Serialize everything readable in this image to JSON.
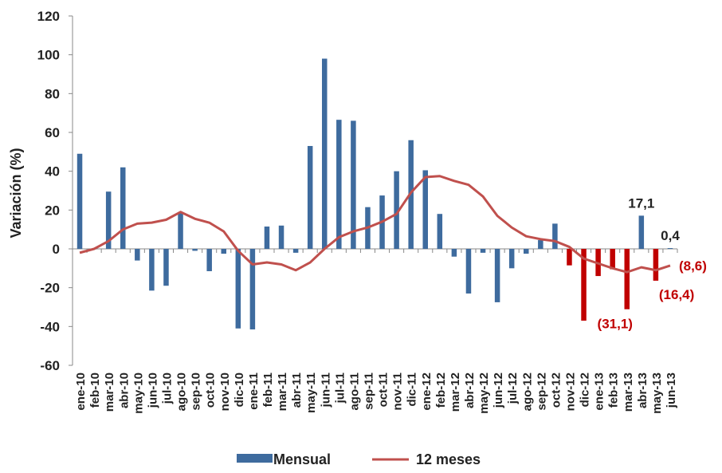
{
  "chart_data": {
    "type": "bar",
    "ylabel": "Variación (%)",
    "ylim": [
      -60,
      120
    ],
    "yticks": [
      "120",
      "100",
      "80",
      "60",
      "40",
      "20",
      "0",
      "-20",
      "-40",
      "-60"
    ],
    "categories": [
      "ene-10",
      "feb-10",
      "mar-10",
      "abr-10",
      "may-10",
      "jun-10",
      "jul-10",
      "ago-10",
      "sep-10",
      "oct-10",
      "nov-10",
      "dic-10",
      "ene-11",
      "feb-11",
      "mar-11",
      "abr-11",
      "may-11",
      "jun-11",
      "jul-11",
      "ago-11",
      "sep-11",
      "oct-11",
      "nov-11",
      "dic-11",
      "ene-12",
      "feb-12",
      "mar-12",
      "abr-12",
      "may-12",
      "jun-12",
      "jul-12",
      "ago-12",
      "sep-12",
      "oct-12",
      "nov-12",
      "dic-12",
      "ene-13",
      "feb-13",
      "mar-13",
      "abr-13",
      "may-13",
      "jun-13"
    ],
    "series": [
      {
        "name": "Mensual",
        "kind": "bar",
        "color": "#3e6b9e",
        "highlight_color": "#c00000",
        "values": [
          49,
          0,
          29.5,
          42,
          -6,
          -21.5,
          -19,
          18.5,
          -1,
          -11.5,
          -2.5,
          -41,
          -41.5,
          11.5,
          12,
          -2,
          53,
          98,
          66.5,
          66,
          21.5,
          27.5,
          40,
          56,
          40.5,
          18,
          -4,
          -23,
          -2,
          -27.5,
          -10,
          -2.5,
          4.5,
          13,
          -8.5,
          -37,
          -14,
          -10.5,
          -31.1,
          17.1,
          -16.4,
          0.4
        ],
        "highlight": [
          false,
          false,
          false,
          false,
          false,
          false,
          false,
          false,
          false,
          false,
          false,
          false,
          false,
          false,
          false,
          false,
          false,
          false,
          false,
          false,
          false,
          false,
          false,
          false,
          false,
          false,
          false,
          false,
          false,
          false,
          false,
          false,
          false,
          false,
          true,
          true,
          true,
          true,
          true,
          false,
          true,
          false
        ]
      },
      {
        "name": "12 meses",
        "kind": "line",
        "color": "#c0504d",
        "values": [
          -2,
          0,
          4,
          10,
          13,
          13.5,
          15,
          19,
          15.5,
          13.5,
          9,
          -1,
          -8,
          -7,
          -8,
          -11,
          -7,
          0,
          6,
          9,
          11,
          14,
          18,
          29,
          37,
          37.5,
          35,
          33,
          27,
          17,
          11,
          6.5,
          5,
          4,
          1,
          -5,
          -7.5,
          -10,
          -12,
          -9.5,
          -11,
          -8.6
        ]
      }
    ],
    "annotations": [
      {
        "text": "17,1",
        "index": 39,
        "value": 17.1,
        "color": "#222222",
        "anchor": "above-bar"
      },
      {
        "text": "0,4",
        "index": 41,
        "value": 0.4,
        "color": "#222222",
        "anchor": "above-bar"
      },
      {
        "text": "(31,1)",
        "index": 38,
        "value": -31.1,
        "color": "#c00000",
        "anchor": "below-left"
      },
      {
        "text": "(16,4)",
        "index": 40,
        "value": -16.4,
        "color": "#c00000",
        "anchor": "below-right"
      },
      {
        "text": "(8,6)",
        "index": 41,
        "value": -8.6,
        "color": "#c00000",
        "anchor": "right"
      }
    ],
    "legend": {
      "position": "bottom"
    }
  }
}
